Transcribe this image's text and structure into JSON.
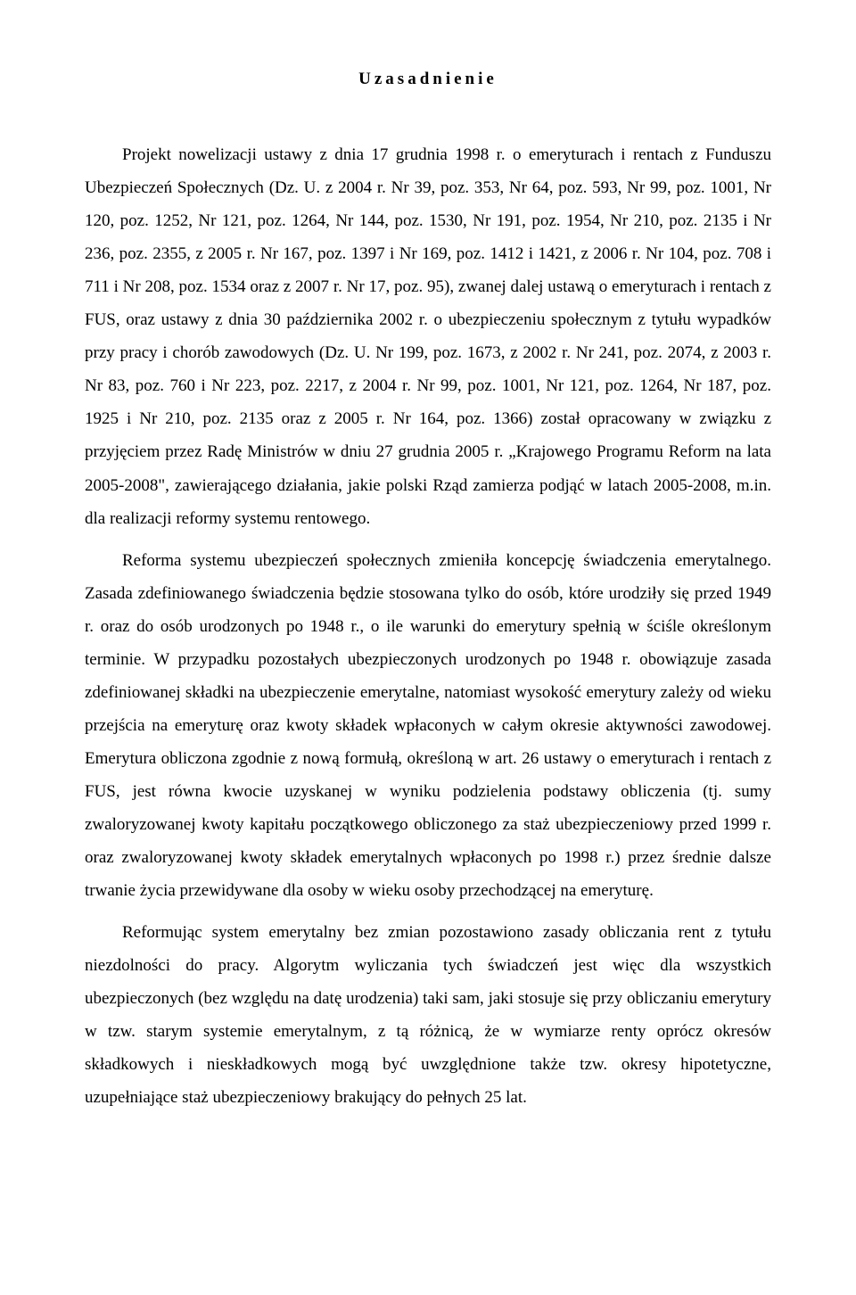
{
  "title": "Uzasadnienie",
  "paragraphs": [
    "Projekt nowelizacji ustawy z dnia 17 grudnia 1998 r. o emeryturach i rentach z Funduszu Ubezpieczeń Społecznych (Dz. U. z 2004 r. Nr 39, poz. 353, Nr 64, poz. 593, Nr 99, poz. 1001, Nr 120, poz. 1252, Nr 121, poz. 1264, Nr 144, poz. 1530, Nr 191, poz. 1954, Nr 210, poz. 2135 i Nr 236, poz. 2355, z 2005 r. Nr 167, poz. 1397 i Nr 169, poz. 1412 i 1421, z 2006 r. Nr 104, poz. 708 i 711 i Nr 208, poz. 1534 oraz z 2007 r. Nr 17, poz. 95), zwanej dalej ustawą o emeryturach i rentach z FUS, oraz ustawy z dnia 30 października 2002 r. o ubezpieczeniu społecznym z tytułu wypadków przy pracy i chorób zawodowych (Dz. U. Nr 199, poz. 1673, z 2002 r. Nr 241, poz. 2074, z 2003 r. Nr 83, poz. 760 i Nr 223, poz. 2217, z 2004 r. Nr 99, poz. 1001, Nr 121, poz. 1264, Nr 187, poz. 1925 i Nr 210, poz. 2135 oraz z 2005 r.  Nr 164, poz. 1366) został opracowany w związku z przyjęciem przez Radę Ministrów w dniu 27 grudnia 2005 r. „Krajowego Programu Reform na lata 2005-2008\", zawierającego działania, jakie polski Rząd zamierza podjąć w latach 2005-2008, m.in. dla realizacji reformy systemu rentowego.",
    "Reforma systemu ubezpieczeń społecznych zmieniła koncepcję świadczenia emerytalnego. Zasada zdefiniowanego świadczenia będzie stosowana tylko do osób, które urodziły się przed 1949 r. oraz do osób urodzonych po 1948 r., o ile warunki do emerytury spełnią w ściśle określonym terminie. W przypadku pozostałych ubezpieczonych urodzonych po 1948 r. obowiązuje zasada zdefiniowanej składki na ubezpieczenie emerytalne, natomiast wysokość emerytury zależy od wieku przejścia na emeryturę oraz kwoty składek wpłaconych w całym okresie aktywności zawodowej. Emerytura obliczona zgodnie z nową formułą, określoną w art. 26 ustawy o emeryturach i rentach z FUS, jest równa kwocie uzyskanej w wyniku podzielenia podstawy obliczenia (tj. sumy zwaloryzowanej kwoty kapitału początkowego obliczonego za staż ubezpieczeniowy przed 1999 r. oraz zwaloryzowanej kwoty składek emerytalnych wpłaconych po 1998 r.) przez średnie dalsze trwanie życia przewidywane dla osoby w wieku osoby przechodzącej na emeryturę.",
    "Reformując system emerytalny bez zmian pozostawiono zasady obliczania rent z tytułu niezdolności do pracy. Algorytm wyliczania tych świadczeń jest więc dla wszystkich ubezpieczonych (bez względu na datę urodzenia) taki sam, jaki stosuje się przy obliczaniu emerytury w tzw. starym systemie emerytalnym, z tą różnicą, że w wymiarze renty oprócz okresów składkowych i nieskładkowych mogą być uwzględnione także tzw. okresy hipotetyczne, uzupełniające staż ubezpieczeniowy brakujący do pełnych 25 lat."
  ]
}
